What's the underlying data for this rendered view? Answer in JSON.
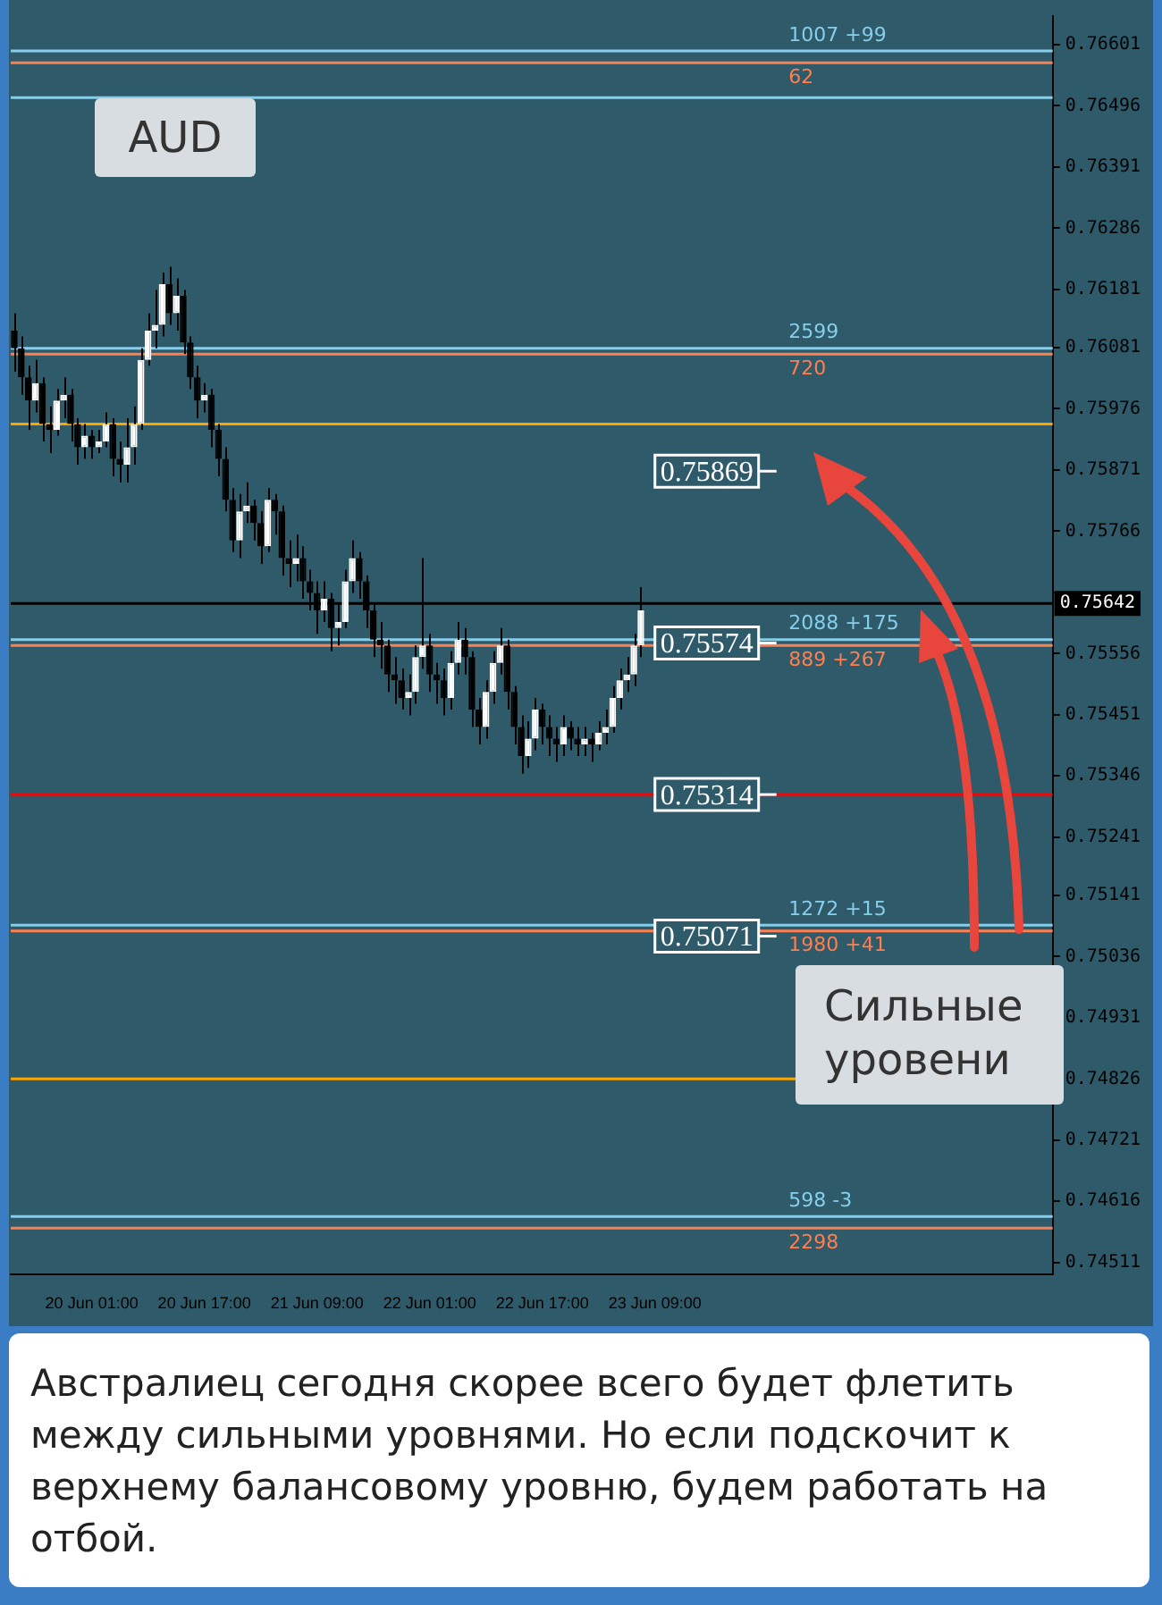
{
  "chart_data": {
    "type": "candlestick",
    "title": "AUD",
    "categories": [
      null,
      null,
      null,
      null,
      null,
      null,
      null,
      null,
      null,
      null,
      null,
      "20 Jun 01:00",
      null,
      null,
      null,
      null,
      null,
      null,
      null,
      null,
      null,
      null,
      null,
      null,
      null,
      null,
      null,
      "20 Jun 17:00",
      null,
      null,
      null,
      null,
      null,
      null,
      null,
      null,
      null,
      null,
      null,
      null,
      null,
      null,
      null,
      "21 Jun 09:00",
      null,
      null,
      null,
      null,
      null,
      null,
      null,
      null,
      null,
      null,
      null,
      null,
      null,
      null,
      null,
      "22 Jun 01:00",
      null,
      null,
      null,
      null,
      null,
      null,
      null,
      null,
      null,
      null,
      null,
      null,
      null,
      null,
      null,
      "22 Jun 17:00",
      null,
      null,
      null,
      null,
      null,
      null,
      null,
      null,
      null,
      null,
      null,
      null,
      null,
      null,
      null,
      "23 Jun 09:00",
      null,
      null,
      null,
      null,
      null,
      null,
      null,
      null,
      null,
      null,
      null,
      null,
      null,
      null,
      null,
      null,
      null,
      null,
      null,
      null,
      null,
      null,
      null,
      null,
      null,
      null,
      null,
      null,
      null,
      null,
      null,
      null,
      null,
      null,
      null,
      null,
      null,
      null,
      null,
      null,
      null,
      null,
      null,
      null,
      null,
      null,
      null,
      null,
      null,
      null,
      null,
      null,
      null,
      null,
      null,
      null
    ],
    "ohlc": [
      [
        0.7611,
        0.7614,
        0.7604,
        0.7608
      ],
      [
        0.7608,
        0.761,
        0.76,
        0.7603
      ],
      [
        0.7603,
        0.7605,
        0.7594,
        0.7599
      ],
      [
        0.7599,
        0.7606,
        0.7597,
        0.7602
      ],
      [
        0.7602,
        0.7603,
        0.7592,
        0.7595
      ],
      [
        0.7595,
        0.7598,
        0.759,
        0.7594
      ],
      [
        0.7594,
        0.7601,
        0.7593,
        0.7599
      ],
      [
        0.7599,
        0.7603,
        0.7596,
        0.76
      ],
      [
        0.76,
        0.7601,
        0.7592,
        0.7595
      ],
      [
        0.7595,
        0.7596,
        0.7588,
        0.7591
      ],
      [
        0.7591,
        0.7595,
        0.7589,
        0.7593
      ],
      [
        0.7593,
        0.7594,
        0.7589,
        0.7591
      ],
      [
        0.7591,
        0.7594,
        0.759,
        0.7592
      ],
      [
        0.7592,
        0.7597,
        0.7591,
        0.7595
      ],
      [
        0.7595,
        0.7596,
        0.7586,
        0.7589
      ],
      [
        0.7589,
        0.7592,
        0.7585,
        0.7588
      ],
      [
        0.7588,
        0.7596,
        0.7585,
        0.7591
      ],
      [
        0.7591,
        0.7598,
        0.7588,
        0.7595
      ],
      [
        0.7595,
        0.7608,
        0.7594,
        0.7606
      ],
      [
        0.7606,
        0.7614,
        0.7605,
        0.7611
      ],
      [
        0.7611,
        0.7618,
        0.7608,
        0.7612
      ],
      [
        0.7612,
        0.7621,
        0.761,
        0.7619
      ],
      [
        0.7619,
        0.7622,
        0.7612,
        0.7614
      ],
      [
        0.7614,
        0.762,
        0.7611,
        0.7617
      ],
      [
        0.7617,
        0.7618,
        0.7607,
        0.7609
      ],
      [
        0.7609,
        0.761,
        0.7601,
        0.7603
      ],
      [
        0.7603,
        0.7605,
        0.7596,
        0.7599
      ],
      [
        0.7599,
        0.7602,
        0.7597,
        0.76
      ],
      [
        0.76,
        0.7601,
        0.7591,
        0.7594
      ],
      [
        0.7594,
        0.7595,
        0.7586,
        0.7589
      ],
      [
        0.7589,
        0.7591,
        0.758,
        0.7582
      ],
      [
        0.7582,
        0.7584,
        0.7573,
        0.7575
      ],
      [
        0.7575,
        0.7583,
        0.7572,
        0.758
      ],
      [
        0.758,
        0.7585,
        0.7578,
        0.7581
      ],
      [
        0.7581,
        0.7582,
        0.7575,
        0.7578
      ],
      [
        0.7578,
        0.758,
        0.7571,
        0.7574
      ],
      [
        0.7574,
        0.7584,
        0.7573,
        0.7582
      ],
      [
        0.7582,
        0.7583,
        0.7576,
        0.758
      ],
      [
        0.758,
        0.7581,
        0.7569,
        0.7572
      ],
      [
        0.7572,
        0.7575,
        0.7567,
        0.7571
      ],
      [
        0.7571,
        0.7576,
        0.7568,
        0.7572
      ],
      [
        0.7572,
        0.7574,
        0.7565,
        0.7568
      ],
      [
        0.7568,
        0.757,
        0.7563,
        0.7566
      ],
      [
        0.7566,
        0.7568,
        0.7559,
        0.7563
      ],
      [
        0.7563,
        0.7568,
        0.7561,
        0.7565
      ],
      [
        0.7565,
        0.7566,
        0.7556,
        0.756
      ],
      [
        0.756,
        0.7564,
        0.7557,
        0.7561
      ],
      [
        0.7561,
        0.757,
        0.756,
        0.7568
      ],
      [
        0.7568,
        0.7575,
        0.7566,
        0.7572
      ],
      [
        0.7572,
        0.7573,
        0.7565,
        0.7568
      ],
      [
        0.7568,
        0.7569,
        0.756,
        0.7563
      ],
      [
        0.7563,
        0.7564,
        0.7555,
        0.7558
      ],
      [
        0.7558,
        0.7561,
        0.7553,
        0.7557
      ],
      [
        0.7557,
        0.7558,
        0.7549,
        0.7552
      ],
      [
        0.7552,
        0.7555,
        0.7547,
        0.7551
      ],
      [
        0.7551,
        0.7553,
        0.7546,
        0.7548
      ],
      [
        0.7548,
        0.7552,
        0.7545,
        0.7549
      ],
      [
        0.7549,
        0.7557,
        0.7547,
        0.7555
      ],
      [
        0.7555,
        0.7572,
        0.7553,
        0.7557
      ],
      [
        0.7557,
        0.7559,
        0.7549,
        0.7552
      ],
      [
        0.7552,
        0.7554,
        0.7547,
        0.7551
      ],
      [
        0.7551,
        0.7553,
        0.7545,
        0.7548
      ],
      [
        0.7548,
        0.7556,
        0.7546,
        0.7554
      ],
      [
        0.7554,
        0.7561,
        0.7552,
        0.7558
      ],
      [
        0.7558,
        0.756,
        0.7552,
        0.7555
      ],
      [
        0.7555,
        0.7556,
        0.7543,
        0.7546
      ],
      [
        0.7546,
        0.7548,
        0.754,
        0.7543
      ],
      [
        0.7543,
        0.7551,
        0.7541,
        0.7549
      ],
      [
        0.7549,
        0.7556,
        0.7547,
        0.7554
      ],
      [
        0.7554,
        0.756,
        0.7552,
        0.7557
      ],
      [
        0.7557,
        0.7558,
        0.7546,
        0.7549
      ],
      [
        0.7549,
        0.755,
        0.754,
        0.7543
      ],
      [
        0.7543,
        0.7545,
        0.7535,
        0.7538
      ],
      [
        0.7538,
        0.7544,
        0.7536,
        0.7541
      ],
      [
        0.7541,
        0.7548,
        0.7539,
        0.7546
      ],
      [
        0.7546,
        0.7547,
        0.754,
        0.7543
      ],
      [
        0.7543,
        0.7545,
        0.7538,
        0.7541
      ],
      [
        0.7541,
        0.7543,
        0.7537,
        0.754
      ],
      [
        0.754,
        0.7545,
        0.7538,
        0.7543
      ],
      [
        0.7543,
        0.7544,
        0.7539,
        0.7541
      ],
      [
        0.7541,
        0.7543,
        0.7538,
        0.754
      ],
      [
        0.754,
        0.7543,
        0.7538,
        0.7541
      ],
      [
        0.7541,
        0.7542,
        0.7537,
        0.754
      ],
      [
        0.754,
        0.7544,
        0.7539,
        0.7542
      ],
      [
        0.7542,
        0.7546,
        0.754,
        0.7543
      ],
      [
        0.7543,
        0.755,
        0.7542,
        0.7548
      ],
      [
        0.7548,
        0.7553,
        0.7546,
        0.7551
      ],
      [
        0.7551,
        0.7555,
        0.7549,
        0.7552
      ],
      [
        0.7552,
        0.7559,
        0.755,
        0.7557
      ],
      [
        0.7557,
        0.7567,
        0.7555,
        0.7563
      ],
      null,
      null,
      null,
      null,
      null,
      null,
      null,
      null,
      null,
      null,
      null,
      null,
      null,
      null,
      null,
      null,
      null,
      null,
      null,
      null,
      null,
      null,
      null,
      null,
      null,
      null,
      null,
      null,
      null,
      null,
      null,
      null,
      null,
      null,
      null,
      null,
      null,
      null,
      null,
      null,
      null,
      null,
      null,
      null,
      null,
      null,
      null,
      null,
      null,
      null,
      null,
      null,
      null,
      null,
      null,
      null,
      null,
      null
    ],
    "colors": [
      "#000000",
      "#000000",
      "#000000",
      "#ffffff",
      "#000000",
      "#000000",
      "#ffffff",
      "#ffffff",
      "#000000",
      "#000000",
      "#ffffff",
      "#000000",
      "#ffffff",
      "#ffffff",
      "#000000",
      "#000000",
      "#ffffff",
      "#ffffff",
      "#ffffff",
      "#ffffff",
      "#ffffff",
      "#ffffff",
      "#000000",
      "#ffffff",
      "#000000",
      "#000000",
      "#000000",
      "#ffffff",
      "#000000",
      "#000000",
      "#000000",
      "#000000",
      "#ffffff",
      "#ffffff",
      "#000000",
      "#000000",
      "#ffffff",
      "#000000",
      "#000000",
      "#000000",
      "#ffffff",
      "#000000",
      "#000000",
      "#000000",
      "#ffffff",
      "#000000",
      "#ffffff",
      "#ffffff",
      "#ffffff",
      "#000000",
      "#000000",
      "#000000",
      "#000000",
      "#000000",
      "#000000",
      "#000000",
      "#ffffff",
      "#ffffff",
      "#ffffff",
      "#000000",
      "#000000",
      "#000000",
      "#ffffff",
      "#ffffff",
      "#000000",
      "#000000",
      "#000000",
      "#ffffff",
      "#ffffff",
      "#ffffff",
      "#000000",
      "#000000",
      "#000000",
      "#ffffff",
      "#ffffff",
      "#000000",
      "#000000",
      "#000000",
      "#ffffff",
      "#000000",
      "#000000",
      "#ffffff",
      "#000000",
      "#ffffff",
      "#ffffff",
      "#ffffff",
      "#ffffff",
      "#ffffff",
      "#ffffff",
      "#ffffff",
      null,
      null,
      null,
      null,
      null,
      null,
      null,
      null,
      null,
      null,
      null,
      null,
      null,
      null,
      null,
      null,
      null,
      null,
      null,
      null,
      null,
      null,
      null,
      null,
      null,
      null,
      null,
      null,
      null,
      null,
      null,
      null,
      null,
      null,
      null,
      null,
      null,
      null,
      null,
      null,
      null,
      null,
      null,
      null,
      null,
      null,
      null,
      null,
      null,
      null,
      null,
      null,
      null,
      null,
      null,
      null,
      null,
      null
    ],
    "ylim": [
      0.7449,
      0.7665
    ],
    "yticks": [
      0.76601,
      0.76496,
      0.76391,
      0.76286,
      0.76181,
      0.76081,
      0.75976,
      0.75871,
      0.75766,
      {
        "value": 0.75661,
        "label": null
      },
      0.75556,
      0.75451,
      0.75346,
      0.75241,
      0.75141,
      0.75036,
      0.74931,
      0.74826,
      0.74721,
      0.74616,
      0.74511
    ],
    "ref_lines": [
      {
        "axis": "y",
        "value": 0.7659,
        "color": "#87ceeb"
      },
      {
        "axis": "y",
        "value": 0.7657,
        "color": "#ff7f50"
      },
      {
        "axis": "y",
        "value": 0.7608,
        "color": "#87ceeb"
      },
      {
        "axis": "y",
        "value": 0.7607,
        "color": "#ff7f50"
      },
      {
        "axis": "y",
        "value": 0.7558,
        "color": "#87ceeb"
      },
      {
        "axis": "y",
        "value": 0.7557,
        "color": "#ff7f50"
      },
      {
        "axis": "y",
        "value": 0.7509,
        "color": "#87ceeb"
      },
      {
        "axis": "y",
        "value": 0.7508,
        "color": "#ff7f50"
      },
      {
        "axis": "y",
        "value": 0.7459,
        "color": "#87ceeb"
      },
      {
        "axis": "y",
        "value": 0.7457,
        "color": "#ff7f50"
      },
      {
        "axis": "y",
        "value": 0.75642,
        "label": "0.75642",
        "color": "#000000"
      },
      {
        "axis": "y",
        "value": 0.7651,
        "color": "#87ceeb"
      },
      {
        "axis": "y",
        "value": 0.75314,
        "color": "#ff0000"
      },
      {
        "axis": "y",
        "value": 0.74826,
        "color": "#ffa500"
      },
      {
        "axis": "y",
        "value": 0.7595,
        "color": "#ffa500"
      },
      {
        "axis": "y",
        "value": 0.75869,
        "label": "0.75869"
      },
      {
        "axis": "y",
        "value": 0.75574,
        "label": "0.75574"
      },
      {
        "axis": "y",
        "value": 0.75314,
        "label": "0.75314"
      },
      {
        "axis": "y",
        "value": 0.75071,
        "label": "0.75071"
      }
    ],
    "annotations": [
      "Сильные уровени",
      "Австралиец сегодня скорее всего будет флетить между сильными уровнями. Но если подскочит к верхнему балансовому уровню, будем работать на отбой.",
      {
        "text": "1007 +99",
        "y": 0.7659
      },
      {
        "text": "62",
        "y": 0.7657
      },
      {
        "text": "2599",
        "y": 0.7608
      },
      {
        "text": "720",
        "y": 0.7607
      },
      {
        "text": "2088 +175",
        "y": 0.7558
      },
      {
        "text": "889 +267",
        "y": 0.7557
      },
      {
        "text": "1272 +15",
        "y": 0.7509
      },
      {
        "text": "1980 +41",
        "y": 0.7508
      },
      {
        "text": "598 -3",
        "y": 0.7459
      },
      {
        "text": "2298",
        "y": 0.7457
      }
    ]
  }
}
